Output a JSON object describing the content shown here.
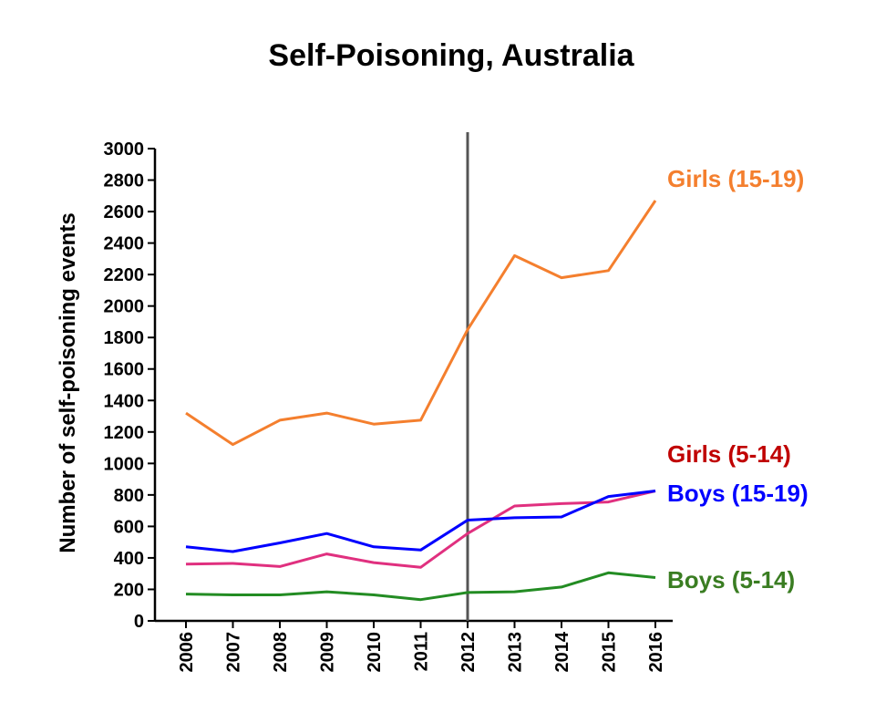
{
  "chart_data": {
    "type": "line",
    "title": "Self-Poisoning, Australia",
    "xlabel": "",
    "ylabel": "Number of self-poisoning events",
    "x": [
      "2006",
      "2007",
      "2008",
      "2009",
      "2010",
      "2011",
      "2012",
      "2013",
      "2014",
      "2015",
      "2016"
    ],
    "ylim": [
      0,
      3000
    ],
    "yticks": [
      0,
      200,
      400,
      600,
      800,
      1000,
      1200,
      1400,
      1600,
      1800,
      2000,
      2200,
      2400,
      2600,
      2800,
      3000
    ],
    "grid": false,
    "legend": "none",
    "vertical_line_at": "2012",
    "series": [
      {
        "name": "Girls (15-19)",
        "color": "#f47f2e",
        "values": [
          1320,
          1120,
          1275,
          1320,
          1250,
          1275,
          1850,
          2320,
          2180,
          2225,
          2670
        ]
      },
      {
        "name": "Girls (5-14)",
        "color": "#e0307f",
        "label_color": "#c00000",
        "values": [
          360,
          365,
          345,
          425,
          370,
          340,
          555,
          730,
          745,
          755,
          825
        ]
      },
      {
        "name": "Boys (15-19)",
        "color": "#0000ff",
        "values": [
          470,
          440,
          495,
          555,
          470,
          450,
          640,
          655,
          660,
          790,
          825
        ]
      },
      {
        "name": "Boys (5-14)",
        "color": "#238c23",
        "label_color": "#3a7d22",
        "values": [
          170,
          165,
          165,
          185,
          165,
          135,
          180,
          185,
          215,
          305,
          275
        ]
      }
    ]
  }
}
